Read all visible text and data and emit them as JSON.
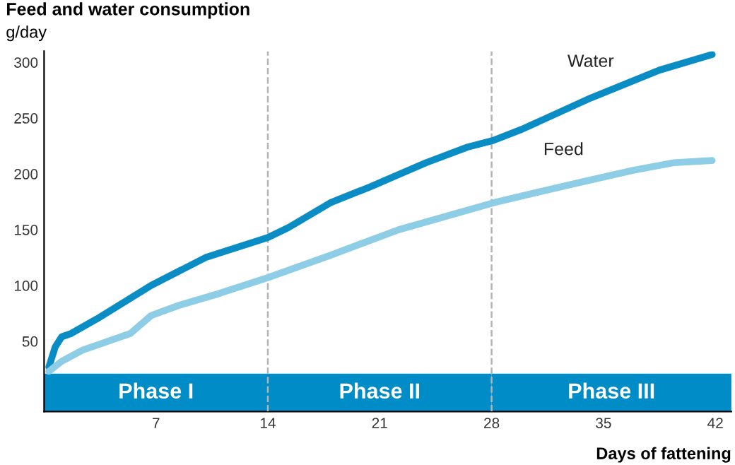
{
  "chart_data": {
    "type": "line",
    "title": "Feed and water consumption",
    "ylabel": "g/day",
    "xlabel": "Days of fattening",
    "series": [
      {
        "name": "Water",
        "color": "#0a8cc4",
        "x": [
          0.3,
          0.7,
          1.1,
          1.7,
          3.3,
          6.7,
          10.1,
          14,
          15.3,
          17.9,
          20.5,
          23.9,
          26.5,
          28.1,
          29.9,
          34.2,
          38.5,
          41.8
        ],
        "values": [
          27,
          45,
          54,
          57,
          70,
          100,
          125,
          143,
          152,
          174,
          189,
          210,
          224,
          230,
          240,
          268,
          293,
          307
        ]
      },
      {
        "name": "Feed",
        "color": "#8ecde6",
        "x": [
          0.3,
          1.1,
          2.4,
          5.4,
          6.7,
          8.4,
          11,
          14,
          17.9,
          22.2,
          28.1,
          32.5,
          36.8,
          39.4,
          41.8
        ],
        "values": [
          23,
          32,
          42,
          57,
          73,
          82,
          93,
          107,
          127,
          150,
          174,
          189,
          203,
          210,
          212
        ]
      }
    ],
    "xlim": [
      0,
      43
    ],
    "xticks": [
      7,
      14,
      21,
      28,
      35,
      42
    ],
    "ylim": [
      -13,
      310
    ],
    "yticks": [
      50,
      100,
      150,
      200,
      250,
      300
    ],
    "ref_lines": [
      {
        "axis": "x",
        "value": 14,
        "color": "#b4b4b4",
        "line_style": "dashed"
      },
      {
        "axis": "x",
        "value": 28,
        "color": "#b4b4b4",
        "line_style": "dashed"
      }
    ],
    "bands": [
      {
        "axis": "x",
        "from": 0,
        "to": 14,
        "label": "Phase I",
        "color": "#008cc6"
      },
      {
        "axis": "x",
        "from": 14,
        "to": 28,
        "label": "Phase II",
        "color": "#008cc6"
      },
      {
        "axis": "x",
        "from": 28,
        "to": 43,
        "label": "Phase III",
        "color": "#008cc6"
      }
    ],
    "grid": false,
    "legend": false,
    "marker": "none",
    "line_style": "solid"
  }
}
